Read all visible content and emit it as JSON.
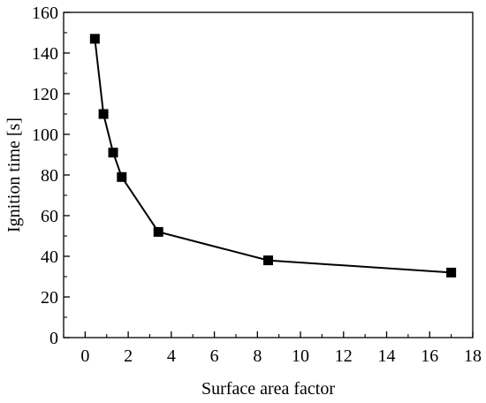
{
  "chart_data": {
    "type": "line",
    "title": "",
    "xlabel": "Surface area factor",
    "ylabel": "Ignition time [s]",
    "xlim": [
      -1,
      18
    ],
    "ylim": [
      0,
      160
    ],
    "xticks": [
      0,
      2,
      4,
      6,
      8,
      10,
      12,
      14,
      16,
      18
    ],
    "yticks": [
      0,
      20,
      40,
      60,
      80,
      100,
      120,
      140,
      160
    ],
    "grid": false,
    "legend": "none",
    "marker": "square",
    "color": "#000000",
    "series": [
      {
        "x": [
          0.45,
          0.85,
          1.3,
          1.7,
          3.4,
          8.5,
          17.0
        ],
        "y": [
          147,
          110,
          91,
          79,
          52,
          38,
          32
        ]
      }
    ]
  }
}
